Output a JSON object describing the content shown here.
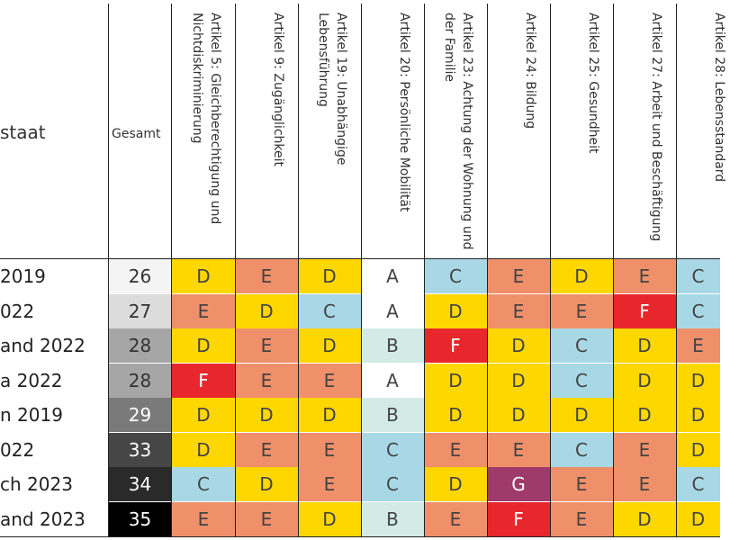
{
  "chart_data": {
    "type": "table",
    "header_state": "staat",
    "header_total": "Gesamt",
    "articles": [
      "Artikel 5: Gleichberechtigung und Nichtdiskriminierung",
      "Artikel 9: Zugänglichkeit",
      "Artikel 19: Unabhängige Lebensführung",
      "Artikel 20: Persönliche Mobilität",
      "Artikel 23: Achtung der Wohnung und der Familie",
      "Artikel 24: Bildung",
      "Artikel 25: Gesundheit",
      "Artikel 27: Arbeit und Beschäftigung",
      "Artikel 28: Lebensstandard"
    ],
    "rows": [
      {
        "state": "2019",
        "total": "26",
        "grades": [
          "D",
          "E",
          "D",
          "A",
          "C",
          "E",
          "D",
          "E",
          "C"
        ]
      },
      {
        "state": "022",
        "total": "27",
        "grades": [
          "E",
          "D",
          "C",
          "A",
          "D",
          "E",
          "E",
          "F",
          "C"
        ]
      },
      {
        "state": "and 2022",
        "total": "28",
        "grades": [
          "D",
          "E",
          "D",
          "B",
          "F",
          "D",
          "C",
          "D",
          "E"
        ]
      },
      {
        "state": "a 2022",
        "total": "28",
        "grades": [
          "F",
          "E",
          "E",
          "A",
          "D",
          "D",
          "C",
          "D",
          "D"
        ]
      },
      {
        "state": "n 2019",
        "total": "29",
        "grades": [
          "D",
          "D",
          "D",
          "B",
          "D",
          "D",
          "D",
          "D",
          "D"
        ]
      },
      {
        "state": "022",
        "total": "33",
        "grades": [
          "D",
          "E",
          "E",
          "C",
          "E",
          "E",
          "C",
          "E",
          "D"
        ]
      },
      {
        "state": "ch 2023",
        "total": "34",
        "grades": [
          "C",
          "D",
          "E",
          "C",
          "D",
          "G",
          "E",
          "E",
          "C"
        ]
      },
      {
        "state": "and 2023",
        "total": "35",
        "grades": [
          "E",
          "E",
          "D",
          "B",
          "E",
          "F",
          "E",
          "D",
          "D"
        ]
      }
    ],
    "grade_colors": {
      "A": "#ffffff",
      "B": "#d3ebe6",
      "C": "#a8d8e6",
      "D": "#ffd700",
      "E": "#ef906a",
      "F": "#e8272c",
      "G": "#9e3b6a"
    },
    "total_colors": [
      "#f4f4f4",
      "#dcdcdc",
      "#a6a6a6",
      "#a6a6a6",
      "#7a7a7a",
      "#464646",
      "#2a2a2a",
      "#000000"
    ]
  }
}
